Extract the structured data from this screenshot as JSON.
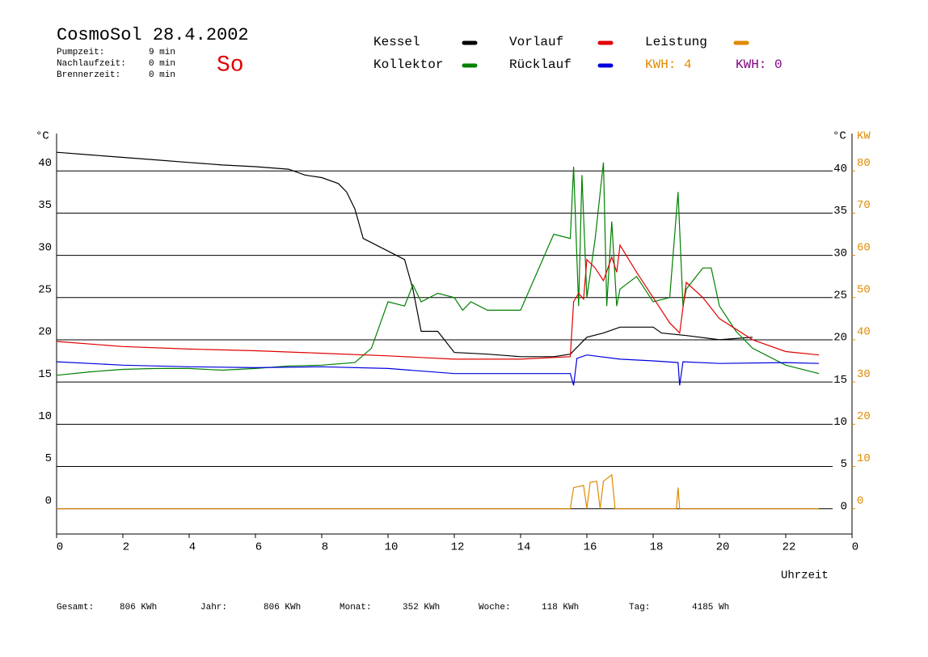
{
  "header": {
    "title": "CosmoSol 28.4.2002",
    "day": "So",
    "stats": [
      {
        "label": "Pumpzeit:",
        "value": "9 min"
      },
      {
        "label": "Nachlaufzeit:",
        "value": "0 min"
      },
      {
        "label": "Brennerzeit:",
        "value": "0 min"
      }
    ],
    "kwh": [
      {
        "label": "KWH: 4",
        "color": "#e08a00"
      },
      {
        "label": "KWH: 0",
        "color": "#800080"
      }
    ]
  },
  "footer": [
    {
      "label": "Gesamt:",
      "value": "806 KWh"
    },
    {
      "label": "Jahr:",
      "value": "806 KWh"
    },
    {
      "label": "Monat:",
      "value": "352 KWh"
    },
    {
      "label": "Woche:",
      "value": "118 KWh"
    },
    {
      "label": "Tag:",
      "value": "4185 Wh"
    }
  ],
  "chart_data": {
    "type": "line",
    "xlabel": "Uhrzeit",
    "ylabel": "°C",
    "y2label": "KW",
    "xlim": [
      0,
      24
    ],
    "xticks": [
      0,
      2,
      4,
      6,
      8,
      10,
      12,
      14,
      16,
      18,
      20,
      22,
      {
        "value": 24,
        "label": "0"
      }
    ],
    "ylim": [
      -3,
      45
    ],
    "yticks": [
      0,
      5,
      10,
      15,
      20,
      25,
      30,
      35,
      40
    ],
    "y2lim": [
      -6,
      90
    ],
    "y2ticks": [
      0,
      10,
      20,
      30,
      40,
      50,
      60,
      70,
      80
    ],
    "grid": true,
    "series": [
      {
        "name": "Kessel",
        "color": "#000000",
        "x": [
          0,
          1,
          2,
          3,
          4,
          5,
          6,
          7,
          7.5,
          8,
          8.5,
          8.75,
          9,
          9.25,
          10,
          10.5,
          10.75,
          11,
          11.5,
          12,
          13,
          14,
          15,
          15.5,
          16,
          16.5,
          17,
          18,
          18.25,
          19,
          20,
          21
        ],
        "values": [
          42.2,
          41.9,
          41.6,
          41.3,
          41.0,
          40.7,
          40.5,
          40.2,
          39.5,
          39.2,
          38.5,
          37.5,
          35.5,
          32,
          30.5,
          29.5,
          26,
          21,
          21,
          18.5,
          18.3,
          18,
          18,
          18.3,
          20.3,
          20.8,
          21.5,
          21.5,
          20.8,
          20.5,
          20,
          20.3
        ]
      },
      {
        "name": "Kollektor",
        "color": "#008000",
        "x": [
          0,
          1,
          2,
          3,
          4,
          5,
          6,
          7,
          8,
          9,
          9.5,
          10,
          10.5,
          10.75,
          11,
          11.5,
          12,
          12.25,
          12.5,
          13,
          14,
          14.5,
          15,
          15.5,
          15.6,
          15.75,
          15.85,
          16,
          16.25,
          16.5,
          16.6,
          16.75,
          16.9,
          17,
          17.5,
          18,
          18.5,
          18.75,
          18.9,
          19,
          19.5,
          19.75,
          20,
          20.5,
          21,
          22,
          23
        ],
        "values": [
          15.8,
          16.2,
          16.5,
          16.6,
          16.6,
          16.4,
          16.6,
          16.9,
          17.0,
          17.3,
          19,
          24.5,
          24,
          26.5,
          24.5,
          25.5,
          25,
          23.5,
          24.5,
          23.5,
          23.5,
          28,
          32.5,
          32,
          40.5,
          24,
          39.5,
          25,
          32,
          41,
          24,
          34,
          24,
          26,
          27.5,
          24.5,
          25,
          37.5,
          24,
          26,
          28.5,
          28.5,
          24,
          21,
          19,
          17,
          16
        ]
      },
      {
        "name": "Vorlauf",
        "color": "#e00000",
        "x": [
          0,
          2,
          4,
          6,
          8,
          10,
          12,
          14,
          15.5,
          15.6,
          15.75,
          15.9,
          16,
          16.25,
          16.5,
          16.75,
          16.9,
          17,
          17.5,
          18,
          18.5,
          18.8,
          19,
          19.5,
          20,
          21,
          22,
          23
        ],
        "values": [
          19.8,
          19.2,
          18.9,
          18.7,
          18.4,
          18.1,
          17.7,
          17.7,
          18,
          24.5,
          25.5,
          24.8,
          29.5,
          28.5,
          27,
          29.8,
          28,
          31.2,
          28,
          25,
          22,
          20.8,
          26.8,
          25,
          22.5,
          20,
          18.6,
          18.2
        ]
      },
      {
        "name": "Rücklauf",
        "color": "#0000e0",
        "x": [
          0,
          2,
          4,
          6,
          8,
          10,
          12,
          14,
          15.5,
          15.6,
          15.7,
          16,
          17,
          18,
          18.75,
          18.8,
          18.9,
          20,
          22,
          23
        ],
        "values": [
          17.4,
          17.0,
          16.8,
          16.7,
          16.8,
          16.6,
          16,
          16,
          16,
          14.6,
          17.8,
          18.2,
          17.7,
          17.5,
          17.3,
          14.6,
          17.4,
          17.2,
          17.3,
          17.2
        ]
      },
      {
        "name": "Leistung",
        "color": "#e08a00",
        "axis": "y2",
        "x": [
          0,
          15.5,
          15.6,
          15.9,
          16,
          16.1,
          16.3,
          16.4,
          16.5,
          16.75,
          16.85,
          18.7,
          18.75,
          18.8,
          23
        ],
        "values": [
          0,
          0,
          5,
          5.5,
          0,
          6.2,
          6.5,
          0,
          6.5,
          8,
          0,
          0,
          5,
          0,
          0
        ]
      }
    ]
  }
}
